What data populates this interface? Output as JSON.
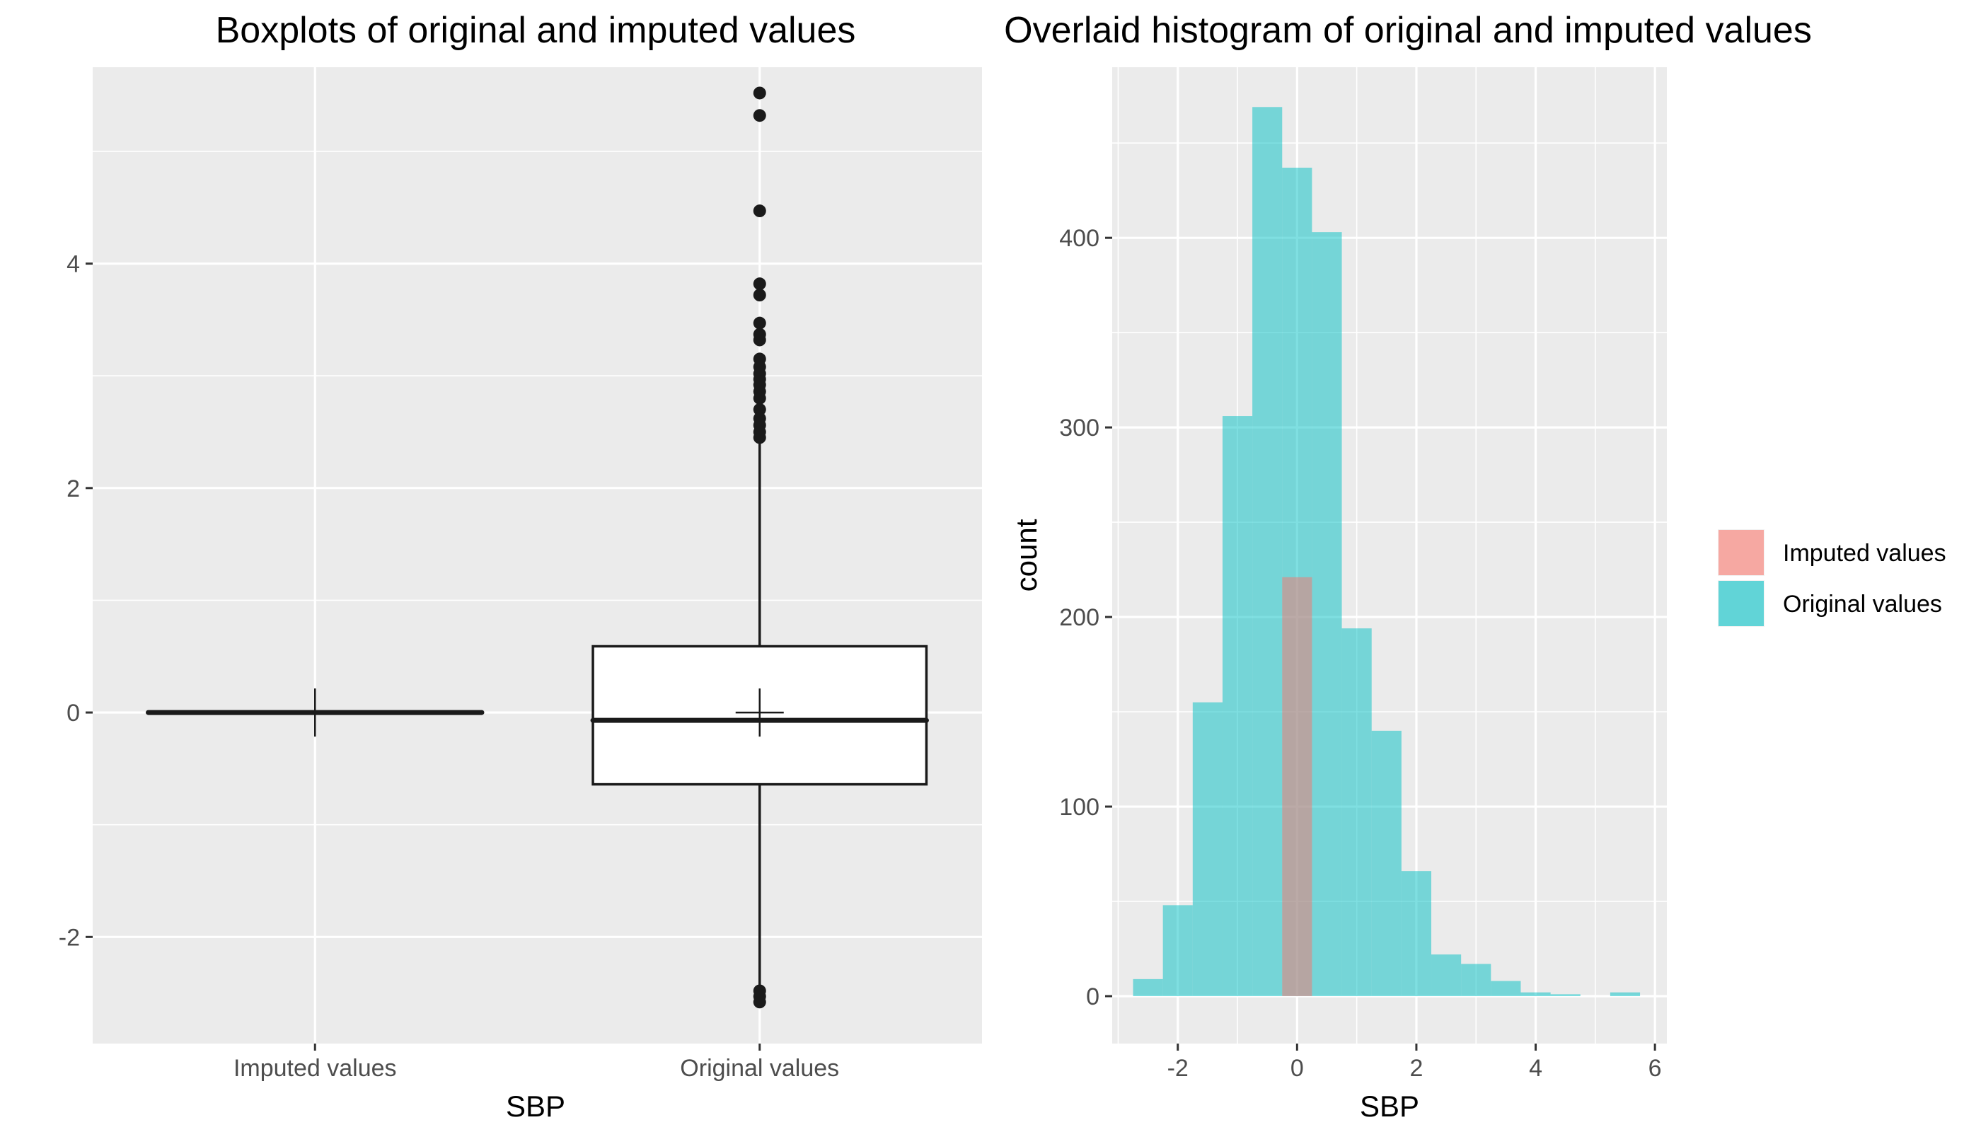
{
  "chart_data": [
    {
      "type": "box",
      "title": "Boxplots of original and imputed values",
      "xlabel": "SBP",
      "ylabel": "",
      "ylim": [
        -2.95,
        5.75
      ],
      "yticks": [
        -2,
        0,
        2,
        4
      ],
      "categories": [
        "Imputed values",
        "Original values"
      ],
      "boxes": [
        {
          "name": "Imputed values",
          "q1": 0,
          "median": 0,
          "q3": 0,
          "whisker_low": 0,
          "whisker_high": 0,
          "mean": 0,
          "outliers": []
        },
        {
          "name": "Original values",
          "q1": -0.64,
          "median": -0.07,
          "q3": 0.59,
          "whisker_low": -2.45,
          "whisker_high": 2.42,
          "mean": 0.0,
          "outliers": [
            5.52,
            5.32,
            4.47,
            3.82,
            3.72,
            3.47,
            3.37,
            3.32,
            3.15,
            3.08,
            3.02,
            2.97,
            2.92,
            2.86,
            2.8,
            2.7,
            2.62,
            2.56,
            2.5,
            2.45,
            -2.48,
            -2.53,
            -2.58
          ]
        }
      ],
      "grid": true
    },
    {
      "type": "histogram",
      "title": "Overlaid histogram of original and imputed values",
      "xlabel": "SBP",
      "ylabel": "count",
      "xlim": [
        -3.1,
        6.2
      ],
      "ylim": [
        -25,
        490
      ],
      "xticks": [
        -2,
        0,
        2,
        4,
        6
      ],
      "yticks": [
        0,
        100,
        200,
        300,
        400
      ],
      "bin_width": 0.5,
      "series": [
        {
          "name": "Imputed values",
          "color": "#F8766D",
          "bins": [
            {
              "x_start": -0.25,
              "x_end": 0.25,
              "count": 221
            }
          ]
        },
        {
          "name": "Original values",
          "color": "#00BFC4",
          "bins": [
            {
              "x_start": -2.75,
              "x_end": -2.25,
              "count": 9
            },
            {
              "x_start": -2.25,
              "x_end": -1.75,
              "count": 48
            },
            {
              "x_start": -1.75,
              "x_end": -1.25,
              "count": 155
            },
            {
              "x_start": -1.25,
              "x_end": -0.75,
              "count": 306
            },
            {
              "x_start": -0.75,
              "x_end": -0.25,
              "count": 469
            },
            {
              "x_start": -0.25,
              "x_end": 0.25,
              "count": 437
            },
            {
              "x_start": 0.25,
              "x_end": 0.75,
              "count": 403
            },
            {
              "x_start": 0.75,
              "x_end": 1.25,
              "count": 194
            },
            {
              "x_start": 1.25,
              "x_end": 1.75,
              "count": 140
            },
            {
              "x_start": 1.75,
              "x_end": 2.25,
              "count": 66
            },
            {
              "x_start": 2.25,
              "x_end": 2.75,
              "count": 22
            },
            {
              "x_start": 2.75,
              "x_end": 3.25,
              "count": 17
            },
            {
              "x_start": 3.25,
              "x_end": 3.75,
              "count": 8
            },
            {
              "x_start": 3.75,
              "x_end": 4.25,
              "count": 2
            },
            {
              "x_start": 4.25,
              "x_end": 4.75,
              "count": 1
            },
            {
              "x_start": 4.75,
              "x_end": 5.25,
              "count": 0
            },
            {
              "x_start": 5.25,
              "x_end": 5.75,
              "count": 2
            }
          ]
        }
      ],
      "legend": {
        "placement": "right",
        "entries": [
          "Imputed values",
          "Original values"
        ]
      },
      "grid": true
    }
  ]
}
